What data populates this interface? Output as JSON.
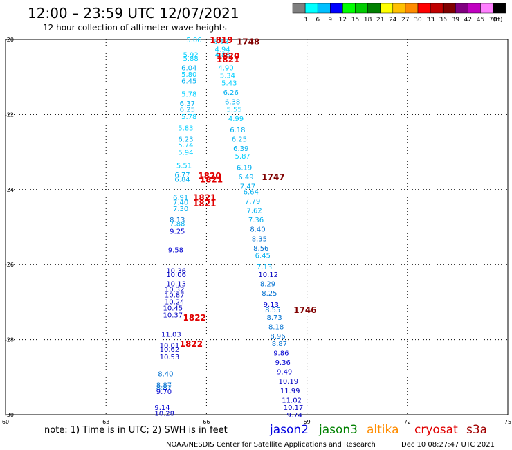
{
  "header": {
    "title": "12:00 – 23:59 UTC 12/07/2021",
    "subtitle": "12 hour collection of altimeter wave heights"
  },
  "legend": {
    "colors": [
      "#7f7f7f",
      "#00ffff",
      "#00bfff",
      "#0000ff",
      "#00ff00",
      "#00cc00",
      "#008000",
      "#ffff00",
      "#ffc000",
      "#ff8c00",
      "#ff0000",
      "#c00000",
      "#800000",
      "#800080",
      "#c000c0",
      "#ff80ff",
      "#000000"
    ],
    "labels": [
      "3",
      "6",
      "9",
      "12",
      "15",
      "18",
      "21",
      "24",
      "27",
      "30",
      "33",
      "36",
      "39",
      "42",
      "45",
      "70"
    ],
    "unit": "(ft)"
  },
  "footer": {
    "note": "note: 1) Time is in UTC; 2) SWH is in feet",
    "credit": "NOAA/NESDIS Center for Satellite Applications and Research",
    "timestamp": "Dec 10 08:27:47 UTC 2021",
    "satellites": [
      {
        "name": "jason2",
        "color": "#0000e0"
      },
      {
        "name": "jason3",
        "color": "#008000"
      },
      {
        "name": "altika",
        "color": "#ff8c00"
      },
      {
        "name": "cryosat",
        "color": "#e00000"
      },
      {
        "name": "s3a",
        "color": "#a00000"
      }
    ]
  },
  "chart_data": {
    "type": "scatter",
    "xlim": [
      60,
      75
    ],
    "ylim": [
      -30,
      -20
    ],
    "x_ticks": [
      "60",
      "63",
      "66",
      "69",
      "72",
      "75"
    ],
    "y_ticks": [
      "-20",
      "-22",
      "-24",
      "-26",
      "-28",
      "-30"
    ],
    "grid": true,
    "time_labels": [
      {
        "x": 66.1,
        "y": -20.0,
        "label": "1819",
        "color": "#e00000"
      },
      {
        "x": 66.9,
        "y": -20.05,
        "label": "1748",
        "color": "#800000"
      },
      {
        "x": 66.3,
        "y": -20.42,
        "label": "1820",
        "color": "#e00000"
      },
      {
        "x": 66.3,
        "y": -20.52,
        "label": "1821",
        "color": "#e00000"
      },
      {
        "x": 65.75,
        "y": -23.62,
        "label": "1820",
        "color": "#e00000"
      },
      {
        "x": 65.8,
        "y": -23.72,
        "label": "1821",
        "color": "#e00000"
      },
      {
        "x": 67.65,
        "y": -23.65,
        "label": "1747",
        "color": "#800000"
      },
      {
        "x": 65.6,
        "y": -24.2,
        "label": "1821",
        "color": "#e00000"
      },
      {
        "x": 65.6,
        "y": -24.35,
        "label": "1821",
        "color": "#e00000"
      },
      {
        "x": 65.3,
        "y": -27.4,
        "label": "1822",
        "color": "#e00000"
      },
      {
        "x": 65.2,
        "y": -28.1,
        "label": "1822",
        "color": "#e00000"
      },
      {
        "x": 68.6,
        "y": -27.2,
        "label": "1746",
        "color": "#800000"
      }
    ],
    "series": [
      {
        "name": "track_1820",
        "points": [
          {
            "x": 65.4,
            "y": -20.0,
            "v": "5.06",
            "color": "#00cfff"
          },
          {
            "x": 65.3,
            "y": -20.4,
            "v": "5.92",
            "color": "#00cfff"
          },
          {
            "x": 65.3,
            "y": -20.5,
            "v": "5.88",
            "color": "#00cfff"
          },
          {
            "x": 65.25,
            "y": -20.75,
            "v": "6.04",
            "color": "#00b0f0"
          },
          {
            "x": 65.25,
            "y": -20.92,
            "v": "5.80",
            "color": "#00cfff"
          },
          {
            "x": 65.25,
            "y": -21.1,
            "v": "6.45",
            "color": "#00b0f0"
          },
          {
            "x": 65.25,
            "y": -21.45,
            "v": "5.78",
            "color": "#00cfff"
          },
          {
            "x": 65.2,
            "y": -21.7,
            "v": "6.37",
            "color": "#00b0f0"
          },
          {
            "x": 65.2,
            "y": -21.85,
            "v": "6.25",
            "color": "#00b0f0"
          },
          {
            "x": 65.25,
            "y": -22.05,
            "v": "5.78",
            "color": "#00cfff"
          },
          {
            "x": 65.15,
            "y": -22.35,
            "v": "5.83",
            "color": "#00cfff"
          },
          {
            "x": 65.15,
            "y": -22.65,
            "v": "6.23",
            "color": "#00b0f0"
          },
          {
            "x": 65.15,
            "y": -22.8,
            "v": "5.74",
            "color": "#00cfff"
          },
          {
            "x": 65.15,
            "y": -23.0,
            "v": "5.94",
            "color": "#00cfff"
          },
          {
            "x": 65.1,
            "y": -23.35,
            "v": "5.51",
            "color": "#00cfff"
          },
          {
            "x": 65.05,
            "y": -23.6,
            "v": "6.77",
            "color": "#00b0f0"
          },
          {
            "x": 65.05,
            "y": -23.72,
            "v": "6.84",
            "color": "#00b0f0"
          },
          {
            "x": 65.0,
            "y": -24.2,
            "v": "6.91",
            "color": "#00b0f0"
          },
          {
            "x": 65.0,
            "y": -24.33,
            "v": "7.40",
            "color": "#00b0f0"
          },
          {
            "x": 65.0,
            "y": -24.5,
            "v": "7.30",
            "color": "#00b0f0"
          },
          {
            "x": 64.9,
            "y": -24.8,
            "v": "8.13",
            "color": "#0070d0"
          },
          {
            "x": 64.9,
            "y": -24.9,
            "v": "7.88",
            "color": "#00b0f0"
          },
          {
            "x": 64.9,
            "y": -25.1,
            "v": "9.25",
            "color": "#0000d0"
          },
          {
            "x": 64.85,
            "y": -25.6,
            "v": "9.58",
            "color": "#0000d0"
          },
          {
            "x": 64.8,
            "y": -26.15,
            "v": "10.36",
            "color": "#0000c0"
          },
          {
            "x": 64.8,
            "y": -26.25,
            "v": "10.06",
            "color": "#0000c0"
          },
          {
            "x": 64.8,
            "y": -26.5,
            "v": "10.13",
            "color": "#0000c0"
          },
          {
            "x": 64.75,
            "y": -26.65,
            "v": "10.32",
            "color": "#0000c0"
          },
          {
            "x": 64.75,
            "y": -26.8,
            "v": "10.87",
            "color": "#0000c0"
          },
          {
            "x": 64.75,
            "y": -26.98,
            "v": "10.24",
            "color": "#0000c0"
          },
          {
            "x": 64.7,
            "y": -27.15,
            "v": "10.45",
            "color": "#0000c0"
          },
          {
            "x": 64.7,
            "y": -27.33,
            "v": "10.37",
            "color": "#0000c0"
          },
          {
            "x": 64.65,
            "y": -27.85,
            "v": "11.03",
            "color": "#0000c0"
          },
          {
            "x": 64.6,
            "y": -28.15,
            "v": "10.01",
            "color": "#0000c0"
          },
          {
            "x": 64.6,
            "y": -28.25,
            "v": "10.62",
            "color": "#0000c0"
          },
          {
            "x": 64.6,
            "y": -28.45,
            "v": "10.53",
            "color": "#0000c0"
          },
          {
            "x": 64.55,
            "y": -28.9,
            "v": "8.40",
            "color": "#0070d0"
          },
          {
            "x": 64.5,
            "y": -29.2,
            "v": "8.87",
            "color": "#0070d0"
          },
          {
            "x": 64.5,
            "y": -29.27,
            "v": "8.87",
            "color": "#0070d0"
          },
          {
            "x": 64.5,
            "y": -29.37,
            "v": "9.70",
            "color": "#0000d0"
          },
          {
            "x": 64.45,
            "y": -29.8,
            "v": "9.14",
            "color": "#0000d0"
          },
          {
            "x": 64.45,
            "y": -29.95,
            "v": "10.28",
            "color": "#0000c0"
          }
        ]
      },
      {
        "name": "track_1747",
        "points": [
          {
            "x": 66.2,
            "y": -20.05,
            "v": "5.13",
            "color": "#00cfff"
          },
          {
            "x": 66.25,
            "y": -20.25,
            "v": "4.94",
            "color": "#00cfff"
          },
          {
            "x": 66.25,
            "y": -20.4,
            "v": "4.88",
            "color": "#00cfff"
          },
          {
            "x": 66.35,
            "y": -20.75,
            "v": "4.90",
            "color": "#00cfff"
          },
          {
            "x": 66.4,
            "y": -20.95,
            "v": "5.34",
            "color": "#00cfff"
          },
          {
            "x": 66.45,
            "y": -21.15,
            "v": "5.43",
            "color": "#00cfff"
          },
          {
            "x": 66.5,
            "y": -21.4,
            "v": "6.26",
            "color": "#00b0f0"
          },
          {
            "x": 66.55,
            "y": -21.65,
            "v": "6.38",
            "color": "#00b0f0"
          },
          {
            "x": 66.6,
            "y": -21.85,
            "v": "5.55",
            "color": "#00cfff"
          },
          {
            "x": 66.65,
            "y": -22.1,
            "v": "4.99",
            "color": "#00cfff"
          },
          {
            "x": 66.7,
            "y": -22.4,
            "v": "6.18",
            "color": "#00b0f0"
          },
          {
            "x": 66.75,
            "y": -22.65,
            "v": "6.25",
            "color": "#00b0f0"
          },
          {
            "x": 66.8,
            "y": -22.9,
            "v": "6.39",
            "color": "#00b0f0"
          },
          {
            "x": 66.85,
            "y": -23.1,
            "v": "5.87",
            "color": "#00cfff"
          },
          {
            "x": 66.9,
            "y": -23.4,
            "v": "6.19",
            "color": "#00b0f0"
          },
          {
            "x": 66.95,
            "y": -23.65,
            "v": "6.49",
            "color": "#00b0f0"
          },
          {
            "x": 67.0,
            "y": -23.9,
            "v": "7.47",
            "color": "#00b0f0"
          },
          {
            "x": 67.1,
            "y": -24.05,
            "v": "6.64",
            "color": "#00b0f0"
          },
          {
            "x": 67.15,
            "y": -24.3,
            "v": "7.79",
            "color": "#00b0f0"
          },
          {
            "x": 67.2,
            "y": -24.55,
            "v": "7.62",
            "color": "#00b0f0"
          },
          {
            "x": 67.25,
            "y": -24.8,
            "v": "7.36",
            "color": "#00b0f0"
          },
          {
            "x": 67.3,
            "y": -25.05,
            "v": "8.40",
            "color": "#0070d0"
          },
          {
            "x": 67.35,
            "y": -25.3,
            "v": "8.35",
            "color": "#0070d0"
          },
          {
            "x": 67.4,
            "y": -25.55,
            "v": "8.56",
            "color": "#0070d0"
          },
          {
            "x": 67.45,
            "y": -25.75,
            "v": "6.45",
            "color": "#00b0f0"
          },
          {
            "x": 67.5,
            "y": -26.05,
            "v": "7.13",
            "color": "#00b0f0"
          },
          {
            "x": 67.55,
            "y": -26.25,
            "v": "10.12",
            "color": "#0000c0"
          },
          {
            "x": 67.6,
            "y": -26.5,
            "v": "8.29",
            "color": "#0070d0"
          },
          {
            "x": 67.65,
            "y": -26.75,
            "v": "8.25",
            "color": "#0070d0"
          },
          {
            "x": 67.7,
            "y": -27.05,
            "v": "9.13",
            "color": "#0000d0"
          },
          {
            "x": 67.75,
            "y": -27.2,
            "v": "8.55",
            "color": "#0070d0"
          },
          {
            "x": 67.8,
            "y": -27.4,
            "v": "8.73",
            "color": "#0070d0"
          },
          {
            "x": 67.85,
            "y": -27.65,
            "v": "8.18",
            "color": "#0070d0"
          },
          {
            "x": 67.9,
            "y": -27.9,
            "v": "8.96",
            "color": "#0070d0"
          },
          {
            "x": 67.95,
            "y": -28.1,
            "v": "8.87",
            "color": "#0070d0"
          },
          {
            "x": 68.0,
            "y": -28.35,
            "v": "9.86",
            "color": "#0000d0"
          },
          {
            "x": 68.05,
            "y": -28.6,
            "v": "9.36",
            "color": "#0000d0"
          },
          {
            "x": 68.1,
            "y": -28.85,
            "v": "9.49",
            "color": "#0000d0"
          },
          {
            "x": 68.15,
            "y": -29.1,
            "v": "10.19",
            "color": "#0000c0"
          },
          {
            "x": 68.2,
            "y": -29.35,
            "v": "11.99",
            "color": "#0000c0"
          },
          {
            "x": 68.25,
            "y": -29.6,
            "v": "11.02",
            "color": "#0000c0"
          },
          {
            "x": 68.3,
            "y": -29.8,
            "v": "10.17",
            "color": "#0000c0"
          },
          {
            "x": 68.4,
            "y": -30.0,
            "v": "9.74",
            "color": "#0000c0"
          }
        ]
      }
    ]
  }
}
